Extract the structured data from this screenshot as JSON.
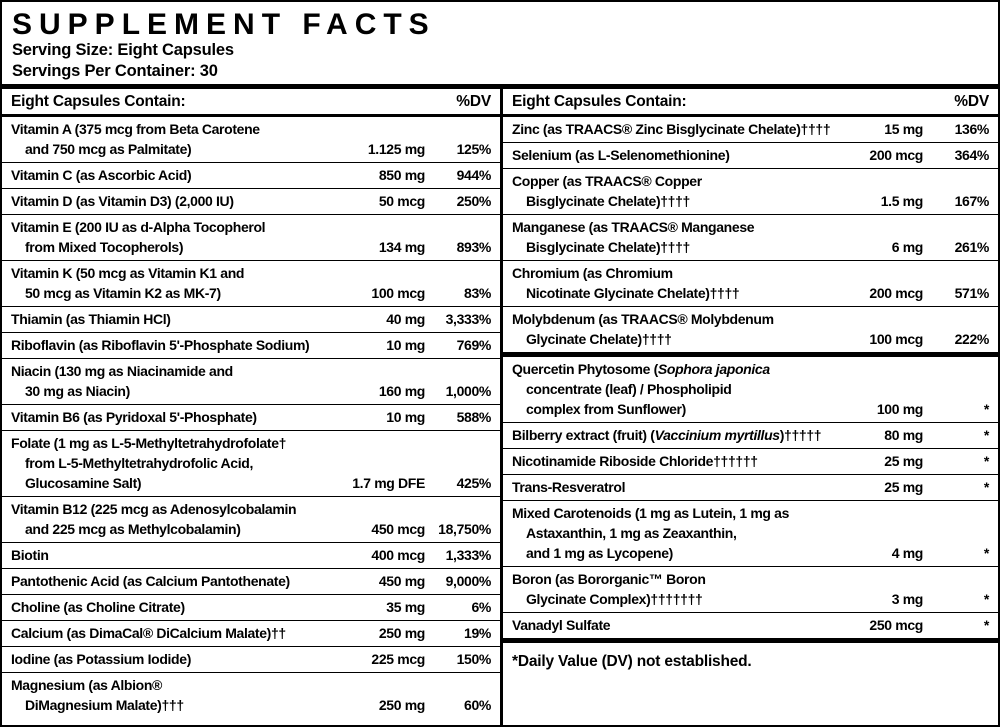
{
  "label": {
    "title": "SUPPLEMENT FACTS",
    "serving_size": "Serving Size: Eight Capsules",
    "servings_per_container": "Servings Per Container: 30",
    "columns": [
      {
        "header": "Eight Capsules Contain:",
        "dv_header": "%DV",
        "rows": [
          {
            "type": "row",
            "lines": [
              [
                {
                  "t": "Vitamin A (375 mcg from Beta Carotene"
                }
              ],
              [
                {
                  "t": "and 750 mcg as Palmitate)"
                }
              ]
            ],
            "amount": "1.125 mg",
            "dv": "125%"
          },
          {
            "type": "row",
            "lines": [
              [
                {
                  "t": "Vitamin C (as Ascorbic Acid)"
                }
              ]
            ],
            "amount": "850 mg",
            "dv": "944%"
          },
          {
            "type": "row",
            "lines": [
              [
                {
                  "t": "Vitamin D (as Vitamin D3) (2,000 IU)"
                }
              ]
            ],
            "amount": "50 mcg",
            "dv": "250%"
          },
          {
            "type": "row",
            "lines": [
              [
                {
                  "t": "Vitamin E (200 IU as d-Alpha Tocopherol"
                }
              ],
              [
                {
                  "t": "from Mixed Tocopherols)"
                }
              ]
            ],
            "amount": "134 mg",
            "dv": "893%"
          },
          {
            "type": "row",
            "lines": [
              [
                {
                  "t": "Vitamin K (50 mcg as Vitamin K1 and"
                }
              ],
              [
                {
                  "t": "50 mcg as Vitamin K2 as MK-7)"
                }
              ]
            ],
            "amount": "100 mcg",
            "dv": "83%"
          },
          {
            "type": "row",
            "lines": [
              [
                {
                  "t": "Thiamin (as Thiamin HCl)"
                }
              ]
            ],
            "amount": "40 mg",
            "dv": "3,333%"
          },
          {
            "type": "row",
            "lines": [
              [
                {
                  "t": "Riboflavin (as Riboflavin 5'-Phosphate Sodium)"
                }
              ]
            ],
            "amount": "10 mg",
            "dv": "769%"
          },
          {
            "type": "row",
            "lines": [
              [
                {
                  "t": "Niacin (130 mg as Niacinamide and"
                }
              ],
              [
                {
                  "t": "30 mg as Niacin)"
                }
              ]
            ],
            "amount": "160 mg",
            "dv": "1,000%"
          },
          {
            "type": "row",
            "lines": [
              [
                {
                  "t": "Vitamin B6 (as Pyridoxal 5'-Phosphate)"
                }
              ]
            ],
            "amount": "10 mg",
            "dv": "588%"
          },
          {
            "type": "row",
            "lines": [
              [
                {
                  "t": "Folate (1 mg as L-5-Methyltetrahydrofolate†"
                }
              ],
              [
                {
                  "t": "from L-5-Methyltetrahydrofolic Acid,"
                }
              ],
              [
                {
                  "t": "Glucosamine Salt)"
                }
              ]
            ],
            "amount": "1.7 mg DFE",
            "dv": "425%"
          },
          {
            "type": "row",
            "lines": [
              [
                {
                  "t": "Vitamin B12 (225 mcg as Adenosylcobalamin"
                }
              ],
              [
                {
                  "t": "and 225 mcg as Methylcobalamin)"
                }
              ]
            ],
            "amount": "450 mcg",
            "dv": "18,750%"
          },
          {
            "type": "row",
            "lines": [
              [
                {
                  "t": "Biotin"
                }
              ]
            ],
            "amount": "400 mcg",
            "dv": "1,333%"
          },
          {
            "type": "row",
            "lines": [
              [
                {
                  "t": "Pantothenic Acid (as Calcium Pantothenate)"
                }
              ]
            ],
            "amount": "450 mg",
            "dv": "9,000%"
          },
          {
            "type": "row",
            "lines": [
              [
                {
                  "t": "Choline (as Choline Citrate)"
                }
              ]
            ],
            "amount": "35 mg",
            "dv": "6%"
          },
          {
            "type": "row",
            "lines": [
              [
                {
                  "t": "Calcium (as DimaCal® DiCalcium Malate)††"
                }
              ]
            ],
            "amount": "250 mg",
            "dv": "19%"
          },
          {
            "type": "row",
            "lines": [
              [
                {
                  "t": "Iodine (as Potassium Iodide)"
                }
              ]
            ],
            "amount": "225 mcg",
            "dv": "150%"
          },
          {
            "type": "row",
            "lines": [
              [
                {
                  "t": "Magnesium (as Albion®"
                }
              ],
              [
                {
                  "t": "DiMagnesium Malate)†††"
                }
              ]
            ],
            "amount": "250 mg",
            "dv": "60%"
          }
        ]
      },
      {
        "header": "Eight Capsules Contain:",
        "dv_header": "%DV",
        "rows": [
          {
            "type": "row",
            "lines": [
              [
                {
                  "t": "Zinc (as TRAACS® Zinc Bisglycinate Chelate)††††"
                }
              ]
            ],
            "amount": "15 mg",
            "dv": "136%"
          },
          {
            "type": "row",
            "lines": [
              [
                {
                  "t": "Selenium (as L-Selenomethionine)"
                }
              ]
            ],
            "amount": "200 mcg",
            "dv": "364%"
          },
          {
            "type": "row",
            "lines": [
              [
                {
                  "t": "Copper (as TRAACS® Copper"
                }
              ],
              [
                {
                  "t": "Bisglycinate Chelate)††††"
                }
              ]
            ],
            "amount": "1.5 mg",
            "dv": "167%"
          },
          {
            "type": "row",
            "lines": [
              [
                {
                  "t": "Manganese (as TRAACS® Manganese"
                }
              ],
              [
                {
                  "t": "Bisglycinate Chelate)††††"
                }
              ]
            ],
            "amount": "6 mg",
            "dv": "261%"
          },
          {
            "type": "row",
            "lines": [
              [
                {
                  "t": "Chromium (as Chromium"
                }
              ],
              [
                {
                  "t": "Nicotinate Glycinate Chelate)††††"
                }
              ]
            ],
            "amount": "200 mcg",
            "dv": "571%"
          },
          {
            "type": "row",
            "lines": [
              [
                {
                  "t": "Molybdenum (as TRAACS® Molybdenum"
                }
              ],
              [
                {
                  "t": "Glycinate Chelate)††††"
                }
              ]
            ],
            "amount": "100 mcg",
            "dv": "222%"
          },
          {
            "type": "divider"
          },
          {
            "type": "row",
            "lines": [
              [
                {
                  "t": "Quercetin Phytosome ("
                },
                {
                  "t": "Sophora japonica",
                  "i": true
                }
              ],
              [
                {
                  "t": "concentrate (leaf) / Phospholipid"
                }
              ],
              [
                {
                  "t": "complex from Sunflower)"
                }
              ]
            ],
            "amount": "100 mg",
            "dv": "*"
          },
          {
            "type": "row",
            "lines": [
              [
                {
                  "t": "Bilberry extract (fruit) ("
                },
                {
                  "t": "Vaccinium myrtillus",
                  "i": true
                },
                {
                  "t": ")†††††"
                }
              ]
            ],
            "amount": "80 mg",
            "dv": "*"
          },
          {
            "type": "row",
            "lines": [
              [
                {
                  "t": "Nicotinamide Riboside Chloride††††††"
                }
              ]
            ],
            "amount": "25 mg",
            "dv": "*"
          },
          {
            "type": "row",
            "lines": [
              [
                {
                  "t": "Trans-Resveratrol"
                }
              ]
            ],
            "amount": "25 mg",
            "dv": "*"
          },
          {
            "type": "row",
            "lines": [
              [
                {
                  "t": "Mixed Carotenoids (1 mg as Lutein, 1 mg as"
                }
              ],
              [
                {
                  "t": "Astaxanthin, 1 mg as Zeaxanthin,"
                }
              ],
              [
                {
                  "t": "and 1 mg as Lycopene)"
                }
              ]
            ],
            "amount": "4 mg",
            "dv": "*"
          },
          {
            "type": "row",
            "lines": [
              [
                {
                  "t": "Boron (as Bororganic™ Boron"
                }
              ],
              [
                {
                  "t": "Glycinate Complex)†††††††"
                }
              ]
            ],
            "amount": "3 mg",
            "dv": "*"
          },
          {
            "type": "row",
            "lines": [
              [
                {
                  "t": "Vanadyl Sulfate"
                }
              ]
            ],
            "amount": "250 mcg",
            "dv": "*"
          },
          {
            "type": "divider"
          },
          {
            "type": "note",
            "text": "*Daily Value (DV) not established."
          }
        ]
      }
    ]
  },
  "colors": {
    "text": "#000000",
    "background": "#ffffff",
    "border": "#000000"
  }
}
